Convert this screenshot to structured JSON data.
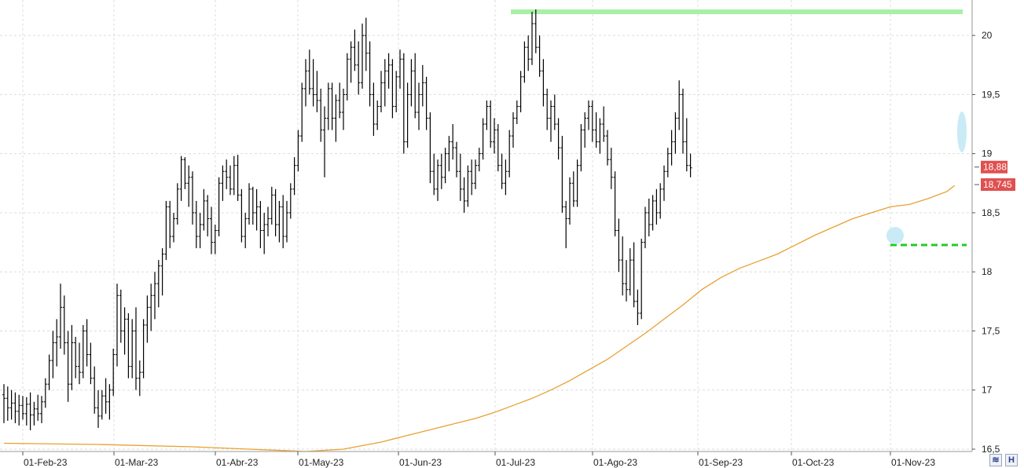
{
  "chart_data": {
    "type": "ohlc",
    "title": "",
    "xlabel": "",
    "ylabel": "",
    "ylim": [
      16.48,
      20.3
    ],
    "y_ticks": [
      "16,5",
      "17",
      "17,5",
      "18",
      "18,5",
      "19",
      "19,5",
      "20"
    ],
    "y_tick_values": [
      16.5,
      17,
      17.5,
      18,
      18.5,
      19,
      19.5,
      20
    ],
    "x_ticks": [
      "01-Feb-23",
      "01-Mar-23",
      "01-Abr-23",
      "01-May-23",
      "01-Jun-23",
      "01-Jul-23",
      "01-Ago-23",
      "01-Sep-23",
      "01-Oct-23",
      "01-Nov-23"
    ],
    "grid": true,
    "price_tags": [
      {
        "label": "18,88",
        "value": 18.88
      },
      {
        "label": "18,745",
        "value": 18.745
      }
    ],
    "annotations": [
      {
        "kind": "resistance-line",
        "value": 20.2,
        "color": "#a8f0a8"
      },
      {
        "kind": "support-line",
        "value": 18.21,
        "color": "#22cc22",
        "style": "dashed"
      }
    ],
    "moving_average": {
      "color": "#e8a030",
      "points": [
        [
          0,
          16.55
        ],
        [
          25,
          16.54
        ],
        [
          50,
          16.52
        ],
        [
          65,
          16.5
        ],
        [
          80,
          16.48
        ],
        [
          90,
          16.5
        ],
        [
          95,
          16.53
        ],
        [
          100,
          16.56
        ],
        [
          105,
          16.6
        ],
        [
          110,
          16.64
        ],
        [
          115,
          16.68
        ],
        [
          120,
          16.72
        ],
        [
          125,
          16.76
        ],
        [
          130,
          16.81
        ],
        [
          135,
          16.87
        ],
        [
          140,
          16.93
        ],
        [
          145,
          17.0
        ],
        [
          150,
          17.08
        ],
        [
          155,
          17.17
        ],
        [
          160,
          17.26
        ],
        [
          165,
          17.37
        ],
        [
          170,
          17.48
        ],
        [
          175,
          17.6
        ],
        [
          180,
          17.72
        ],
        [
          185,
          17.85
        ],
        [
          190,
          17.95
        ],
        [
          195,
          18.03
        ],
        [
          200,
          18.09
        ],
        [
          205,
          18.15
        ],
        [
          210,
          18.23
        ],
        [
          215,
          18.31
        ],
        [
          220,
          18.38
        ],
        [
          225,
          18.45
        ],
        [
          230,
          18.5
        ],
        [
          235,
          18.55
        ],
        [
          240,
          18.57
        ],
        [
          245,
          18.62
        ],
        [
          250,
          18.68
        ],
        [
          252,
          18.73
        ]
      ]
    },
    "series_color": "#000000",
    "bars": [
      [
        16.96,
        17.05,
        16.72,
        16.93
      ],
      [
        16.93,
        17.03,
        16.74,
        16.85
      ],
      [
        16.85,
        17.0,
        16.75,
        16.89
      ],
      [
        16.89,
        16.98,
        16.72,
        16.82
      ],
      [
        16.82,
        16.96,
        16.7,
        16.87
      ],
      [
        16.87,
        16.95,
        16.75,
        16.8
      ],
      [
        16.8,
        16.94,
        16.7,
        16.88
      ],
      [
        16.88,
        16.98,
        16.66,
        16.79
      ],
      [
        16.79,
        16.9,
        16.7,
        16.84
      ],
      [
        16.84,
        16.96,
        16.74,
        16.8
      ],
      [
        16.8,
        16.95,
        16.72,
        16.9
      ],
      [
        16.9,
        17.1,
        16.85,
        17.05
      ],
      [
        17.05,
        17.3,
        17.0,
        17.25
      ],
      [
        17.25,
        17.5,
        17.1,
        17.4
      ],
      [
        17.4,
        17.6,
        17.2,
        17.45
      ],
      [
        17.45,
        17.9,
        17.35,
        17.7
      ],
      [
        17.7,
        17.8,
        17.3,
        17.4
      ],
      [
        17.4,
        17.5,
        16.9,
        17.05
      ],
      [
        17.05,
        17.55,
        17.0,
        17.4
      ],
      [
        17.4,
        17.45,
        17.1,
        17.2
      ],
      [
        17.2,
        17.4,
        17.05,
        17.15
      ],
      [
        17.15,
        17.55,
        17.1,
        17.5
      ],
      [
        17.5,
        17.6,
        17.2,
        17.3
      ],
      [
        17.3,
        17.4,
        17.05,
        17.1
      ],
      [
        17.1,
        17.2,
        16.8,
        16.85
      ],
      [
        16.85,
        17.0,
        16.68,
        16.78
      ],
      [
        16.78,
        17.0,
        16.75,
        16.95
      ],
      [
        16.95,
        17.1,
        16.8,
        16.9
      ],
      [
        16.9,
        17.05,
        16.75,
        17.0
      ],
      [
        17.0,
        17.35,
        16.95,
        17.3
      ],
      [
        17.3,
        17.9,
        17.2,
        17.8
      ],
      [
        17.8,
        17.85,
        17.4,
        17.5
      ],
      [
        17.5,
        17.7,
        17.3,
        17.6
      ],
      [
        17.6,
        17.65,
        17.1,
        17.2
      ],
      [
        17.2,
        17.6,
        17.1,
        17.5
      ],
      [
        17.5,
        17.7,
        17.0,
        17.1
      ],
      [
        17.1,
        17.25,
        16.95,
        17.15
      ],
      [
        17.15,
        17.6,
        17.1,
        17.55
      ],
      [
        17.55,
        17.8,
        17.4,
        17.7
      ],
      [
        17.7,
        17.9,
        17.5,
        17.8
      ],
      [
        17.8,
        18.0,
        17.6,
        17.9
      ],
      [
        17.9,
        18.1,
        17.7,
        18.05
      ],
      [
        18.05,
        18.2,
        17.8,
        18.15
      ],
      [
        18.15,
        18.6,
        18.1,
        18.55
      ],
      [
        18.55,
        18.6,
        18.2,
        18.3
      ],
      [
        18.3,
        18.5,
        18.25,
        18.45
      ],
      [
        18.45,
        18.75,
        18.4,
        18.7
      ],
      [
        18.7,
        18.98,
        18.6,
        18.95
      ],
      [
        18.95,
        18.97,
        18.7,
        18.75
      ],
      [
        18.75,
        18.9,
        18.55,
        18.8
      ],
      [
        18.8,
        18.85,
        18.4,
        18.5
      ],
      [
        18.5,
        18.6,
        18.2,
        18.3
      ],
      [
        18.3,
        18.5,
        18.2,
        18.4
      ],
      [
        18.4,
        18.7,
        18.35,
        18.6
      ],
      [
        18.6,
        18.65,
        18.3,
        18.45
      ],
      [
        18.45,
        18.55,
        18.15,
        18.25
      ],
      [
        18.25,
        18.4,
        18.15,
        18.35
      ],
      [
        18.35,
        18.8,
        18.3,
        18.75
      ],
      [
        18.75,
        18.9,
        18.6,
        18.85
      ],
      [
        18.85,
        18.95,
        18.7,
        18.8
      ],
      [
        18.8,
        18.9,
        18.65,
        18.7
      ],
      [
        18.7,
        18.98,
        18.65,
        18.9
      ],
      [
        18.9,
        18.99,
        18.6,
        18.65
      ],
      [
        18.65,
        18.7,
        18.25,
        18.3
      ],
      [
        18.3,
        18.5,
        18.2,
        18.45
      ],
      [
        18.45,
        18.75,
        18.4,
        18.7
      ],
      [
        18.7,
        18.72,
        18.4,
        18.5
      ],
      [
        18.5,
        18.7,
        18.35,
        18.55
      ],
      [
        18.55,
        18.6,
        18.2,
        18.35
      ],
      [
        18.35,
        18.5,
        18.15,
        18.4
      ],
      [
        18.4,
        18.55,
        18.3,
        18.45
      ],
      [
        18.45,
        18.72,
        18.4,
        18.65
      ],
      [
        18.65,
        18.7,
        18.3,
        18.4
      ],
      [
        18.4,
        18.6,
        18.25,
        18.55
      ],
      [
        18.55,
        18.65,
        18.2,
        18.3
      ],
      [
        18.3,
        18.6,
        18.25,
        18.5
      ],
      [
        18.5,
        18.75,
        18.45,
        18.7
      ],
      [
        18.7,
        18.97,
        18.65,
        18.9
      ],
      [
        18.9,
        19.2,
        18.85,
        19.15
      ],
      [
        19.15,
        19.6,
        19.1,
        19.55
      ],
      [
        19.55,
        19.8,
        19.4,
        19.7
      ],
      [
        19.7,
        19.88,
        19.5,
        19.55
      ],
      [
        19.55,
        19.8,
        19.4,
        19.5
      ],
      [
        19.5,
        19.7,
        19.35,
        19.45
      ],
      [
        19.45,
        19.55,
        19.1,
        19.2
      ],
      [
        19.2,
        19.4,
        18.8,
        19.3
      ],
      [
        19.3,
        19.6,
        19.2,
        19.55
      ],
      [
        19.55,
        19.6,
        19.2,
        19.3
      ],
      [
        19.3,
        19.5,
        19.1,
        19.45
      ],
      [
        19.45,
        19.6,
        19.3,
        19.35
      ],
      [
        19.35,
        19.55,
        19.2,
        19.5
      ],
      [
        19.5,
        19.85,
        19.45,
        19.8
      ],
      [
        19.8,
        19.95,
        19.6,
        19.9
      ],
      [
        19.9,
        20.05,
        19.7,
        19.75
      ],
      [
        19.75,
        19.95,
        19.5,
        19.6
      ],
      [
        19.6,
        20.1,
        19.55,
        20.0
      ],
      [
        20.0,
        20.15,
        19.7,
        19.85
      ],
      [
        19.85,
        19.95,
        19.4,
        19.5
      ],
      [
        19.5,
        19.6,
        19.15,
        19.25
      ],
      [
        19.25,
        19.45,
        19.2,
        19.4
      ],
      [
        19.4,
        19.7,
        19.35,
        19.6
      ],
      [
        19.6,
        19.8,
        19.4,
        19.7
      ],
      [
        19.7,
        19.85,
        19.55,
        19.75
      ],
      [
        19.75,
        19.8,
        19.3,
        19.4
      ],
      [
        19.4,
        19.7,
        19.35,
        19.65
      ],
      [
        19.65,
        19.88,
        19.55,
        19.8
      ],
      [
        19.8,
        19.85,
        19.0,
        19.1
      ],
      [
        19.1,
        19.6,
        19.05,
        19.5
      ],
      [
        19.5,
        19.8,
        19.4,
        19.7
      ],
      [
        19.7,
        19.85,
        19.3,
        19.35
      ],
      [
        19.35,
        19.6,
        19.2,
        19.5
      ],
      [
        19.5,
        19.75,
        19.4,
        19.6
      ],
      [
        19.6,
        19.65,
        19.2,
        19.3
      ],
      [
        19.3,
        19.35,
        18.75,
        18.85
      ],
      [
        18.85,
        19.0,
        18.65,
        18.7
      ],
      [
        18.7,
        18.95,
        18.6,
        18.9
      ],
      [
        18.9,
        19.0,
        18.7,
        18.8
      ],
      [
        18.8,
        19.05,
        18.75,
        19.0
      ],
      [
        19.0,
        19.15,
        18.85,
        19.1
      ],
      [
        19.1,
        19.25,
        18.95,
        19.05
      ],
      [
        19.05,
        19.1,
        18.8,
        18.85
      ],
      [
        18.85,
        19.0,
        18.6,
        18.7
      ],
      [
        18.7,
        18.8,
        18.5,
        18.6
      ],
      [
        18.6,
        18.9,
        18.55,
        18.85
      ],
      [
        18.85,
        18.95,
        18.65,
        18.75
      ],
      [
        18.75,
        18.95,
        18.7,
        18.9
      ],
      [
        18.9,
        19.05,
        18.85,
        19.0
      ],
      [
        19.0,
        19.3,
        18.95,
        19.25
      ],
      [
        19.25,
        19.45,
        19.2,
        19.4
      ],
      [
        19.4,
        19.45,
        19.05,
        19.1
      ],
      [
        19.1,
        19.3,
        19.0,
        19.2
      ],
      [
        19.2,
        19.25,
        18.85,
        18.9
      ],
      [
        18.9,
        19.0,
        18.7,
        18.75
      ],
      [
        18.75,
        18.95,
        18.65,
        18.85
      ],
      [
        18.85,
        19.2,
        18.8,
        19.15
      ],
      [
        19.15,
        19.35,
        19.05,
        19.3
      ],
      [
        19.3,
        19.45,
        19.25,
        19.4
      ],
      [
        19.4,
        19.7,
        19.35,
        19.65
      ],
      [
        19.65,
        19.95,
        19.6,
        19.9
      ],
      [
        19.9,
        20.0,
        19.7,
        19.8
      ],
      [
        19.8,
        20.2,
        19.75,
        20.1
      ],
      [
        20.1,
        20.22,
        19.85,
        19.9
      ],
      [
        19.9,
        20.0,
        19.65,
        19.7
      ],
      [
        19.7,
        19.8,
        19.4,
        19.5
      ],
      [
        19.5,
        19.55,
        19.2,
        19.3
      ],
      [
        19.3,
        19.45,
        19.1,
        19.4
      ],
      [
        19.4,
        19.5,
        19.2,
        19.25
      ],
      [
        19.25,
        19.3,
        18.95,
        19.05
      ],
      [
        19.05,
        19.15,
        18.5,
        18.55
      ],
      [
        18.55,
        18.6,
        18.2,
        18.45
      ],
      [
        18.45,
        18.8,
        18.4,
        18.75
      ],
      [
        18.75,
        18.85,
        18.55,
        18.6
      ],
      [
        18.6,
        18.95,
        18.55,
        18.9
      ],
      [
        18.9,
        19.25,
        18.85,
        19.2
      ],
      [
        19.2,
        19.35,
        19.05,
        19.3
      ],
      [
        19.3,
        19.45,
        19.2,
        19.4
      ],
      [
        19.4,
        19.45,
        19.1,
        19.2
      ],
      [
        19.2,
        19.35,
        19.05,
        19.1
      ],
      [
        19.1,
        19.3,
        19.0,
        19.25
      ],
      [
        19.25,
        19.4,
        19.1,
        19.15
      ],
      [
        19.15,
        19.2,
        18.9,
        18.95
      ],
      [
        18.95,
        19.05,
        18.7,
        18.8
      ],
      [
        18.8,
        18.85,
        18.3,
        18.35
      ],
      [
        18.35,
        18.45,
        18.0,
        18.1
      ],
      [
        18.1,
        18.3,
        17.8,
        17.9
      ],
      [
        17.9,
        18.1,
        17.75,
        17.85
      ],
      [
        17.85,
        18.2,
        17.8,
        18.1
      ],
      [
        18.1,
        18.25,
        17.7,
        17.75
      ],
      [
        17.75,
        17.85,
        17.55,
        17.65
      ],
      [
        17.65,
        18.28,
        17.6,
        18.25
      ],
      [
        18.25,
        18.55,
        18.2,
        18.5
      ],
      [
        18.5,
        18.62,
        18.3,
        18.4
      ],
      [
        18.4,
        18.65,
        18.35,
        18.6
      ],
      [
        18.6,
        18.7,
        18.4,
        18.5
      ],
      [
        18.5,
        18.75,
        18.45,
        18.7
      ],
      [
        18.7,
        18.9,
        18.6,
        18.85
      ],
      [
        18.85,
        19.05,
        18.8,
        19.0
      ],
      [
        19.0,
        19.2,
        18.9,
        19.1
      ],
      [
        19.1,
        19.35,
        19.0,
        19.3
      ],
      [
        19.3,
        19.62,
        19.2,
        19.5
      ],
      [
        19.5,
        19.55,
        19.0,
        19.1
      ],
      [
        19.1,
        19.3,
        18.85,
        18.9
      ],
      [
        18.9,
        19.0,
        18.8,
        18.88
      ]
    ]
  },
  "toolbar": {
    "btn1_glyph": "≋",
    "btn2_glyph": "H"
  }
}
